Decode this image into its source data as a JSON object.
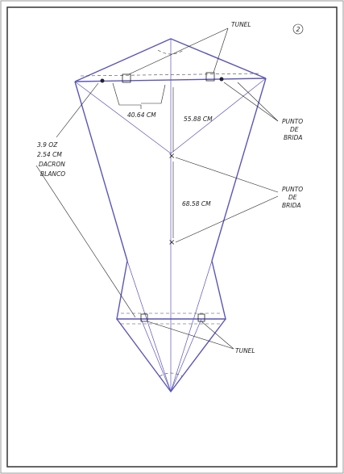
{
  "page_number": "2",
  "annotations": {
    "tunel_top": "TUNEL",
    "spar_spacing": "40.64 CM",
    "upper_length": "55.88 CM",
    "bridle_top": [
      "PUNTO",
      "DE",
      "BRIDA"
    ],
    "material": [
      "3.9 OZ",
      "2.54 CM",
      "DACRON",
      "BLANCO"
    ],
    "lower_length": "68.58 CM",
    "bridle_bottom": [
      "PUNTO",
      "DE",
      "BRIDA"
    ],
    "tunel_bottom": "TUNEL"
  }
}
